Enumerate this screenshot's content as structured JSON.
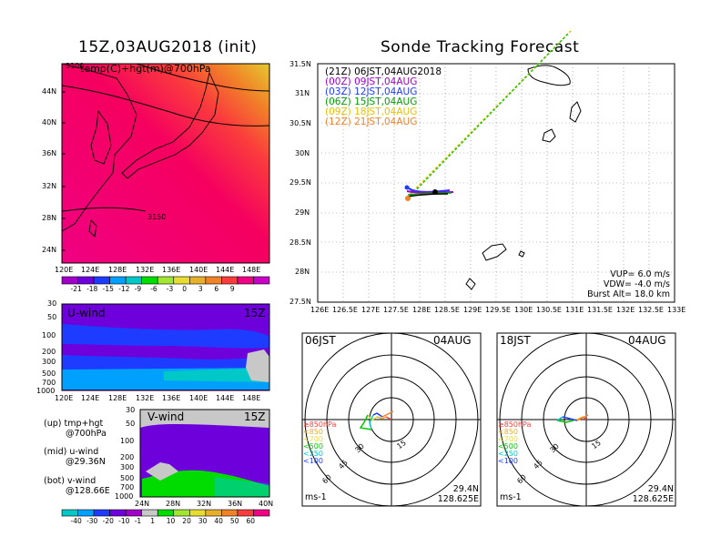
{
  "map_panel": {
    "title": "15Z,03AUG2018 (init)",
    "subtitle": "temp(C)+hgt(m)@700hPa",
    "contour_labels": [
      "3100",
      "3150"
    ],
    "lat_ticks": [
      "44N",
      "40N",
      "36N",
      "32N",
      "28N",
      "24N"
    ],
    "lon_ticks": [
      "120E",
      "124E",
      "128E",
      "132E",
      "136E",
      "140E",
      "144E",
      "148E"
    ],
    "colorbar": {
      "labels": [
        "-21",
        "-18",
        "-15",
        "-12",
        "-9",
        "-6",
        "-3",
        "0",
        "3",
        "6",
        "9"
      ],
      "colors": [
        "#a000c8",
        "#6e00dc",
        "#1e3cff",
        "#00a0ff",
        "#00c8c8",
        "#00dc00",
        "#a0e632",
        "#e6dc32",
        "#e6af2d",
        "#f08228",
        "#fa3c3c",
        "#f00082",
        "#c800c8"
      ]
    }
  },
  "uwind_panel": {
    "title": "U-wind",
    "time": "15Z",
    "p_ticks": [
      "30",
      "50",
      "100",
      "200",
      "300",
      "500",
      "700",
      "1000"
    ],
    "lon_ticks": [
      "120E",
      "124E",
      "128E",
      "132E",
      "136E",
      "140E",
      "144E",
      "148E"
    ]
  },
  "vwind_panel": {
    "title": "V-wind",
    "time": "15Z",
    "p_ticks": [
      "30",
      "50",
      "100",
      "200",
      "300",
      "500",
      "700",
      "1000"
    ],
    "lat_ticks": [
      "24N",
      "28N",
      "32N",
      "36N",
      "40N"
    ]
  },
  "legend_notes": [
    {
      "label": "(up) tmp+hgt",
      "sub": "@700hPa"
    },
    {
      "label": "(mid) u-wind",
      "sub": "@29.36N"
    },
    {
      "label": "(bot) v-wind",
      "sub": "@128.66E"
    }
  ],
  "wind_colorbar": {
    "labels": [
      "-40",
      "-30",
      "-20",
      "-10",
      "-1",
      "1",
      "10",
      "20",
      "30",
      "40",
      "50",
      "60"
    ],
    "colors": [
      "#00c8c8",
      "#00a0ff",
      "#1e3cff",
      "#6e00dc",
      "#a000c8",
      "#c8c8c8",
      "#00dc00",
      "#a0e632",
      "#e6dc32",
      "#e6af2d",
      "#f08228",
      "#fa3c3c",
      "#f00082"
    ]
  },
  "tracking": {
    "title": "Sonde Tracking Forecast",
    "entries": [
      {
        "label": "(21Z)  06JST,04AUG2018",
        "color": "#000000"
      },
      {
        "label": "(00Z)  09JST,04AUG",
        "color": "#a000c8"
      },
      {
        "label": "(03Z)  12JST,04AUG",
        "color": "#1e3cff"
      },
      {
        "label": "(06Z)  15JST,04AUG",
        "color": "#00a000"
      },
      {
        "label": "(09Z)  18JST,04AUG",
        "color": "#e6c000"
      },
      {
        "label": "(12Z)  21JST,04AUG",
        "color": "#f08228"
      }
    ],
    "lat_ticks": [
      "31.5N",
      "31N",
      "30.5N",
      "30N",
      "29.5N",
      "29N",
      "28.5N",
      "28N",
      "27.5N"
    ],
    "lon_ticks": [
      "126E",
      "126.5E",
      "127E",
      "127.5E",
      "128E",
      "128.5E",
      "129E",
      "129.5E",
      "130E",
      "130.5E",
      "131E",
      "131.5E",
      "132E",
      "132.5E",
      "133E"
    ],
    "params": [
      "VUP=  6.0  m/s",
      "VDW= -4.0  m/s",
      "Burst Alt=  18.0  km"
    ]
  },
  "hodographs": [
    {
      "time": "06JST",
      "date": "04AUG",
      "lat": "29.4N",
      "lon": "128.625E",
      "unit": "ms-1"
    },
    {
      "time": "18JST",
      "date": "04AUG",
      "lat": "29.4N",
      "lon": "128.625E",
      "unit": "ms-1"
    }
  ],
  "hodo_ring_labels": [
    "15",
    "30",
    "45",
    "60"
  ],
  "hodo_legend": [
    {
      "label": "≥850hPa",
      "color": "#fa3c3c"
    },
    {
      "label": "<850",
      "color": "#e6af2d"
    },
    {
      "label": "<700",
      "color": "#e6dc32"
    },
    {
      "label": "<500",
      "color": "#00dc00"
    },
    {
      "label": "<250",
      "color": "#00c8c8"
    },
    {
      "label": "<100",
      "color": "#1e3cff"
    }
  ]
}
